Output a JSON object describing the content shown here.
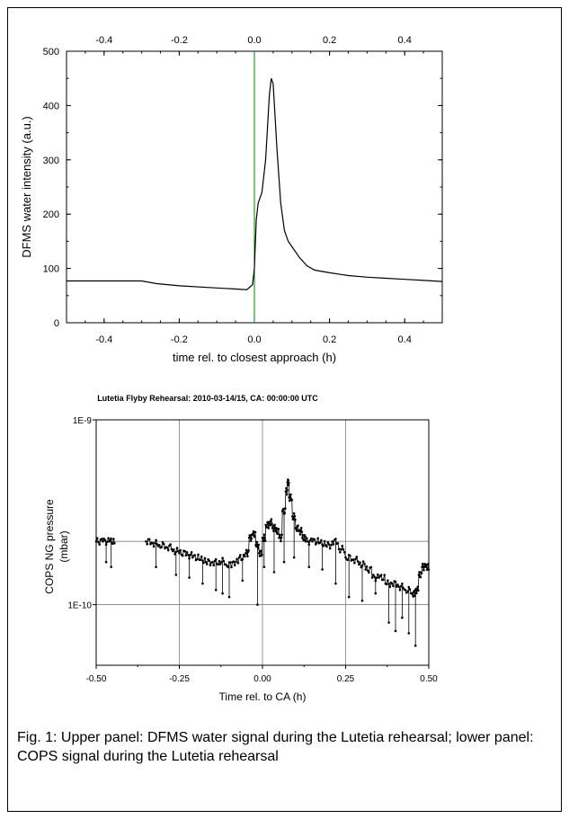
{
  "chart_data": [
    {
      "type": "line",
      "title": "",
      "xlabel": "time rel. to closest approach (h)",
      "ylabel": "DFMS water intensity (a.u.)",
      "xlim": [
        -0.5,
        0.5
      ],
      "ylim": [
        0,
        500
      ],
      "xticks": [
        -0.4,
        -0.2,
        0.0,
        0.2,
        0.4
      ],
      "xtick_labels": [
        "-0.4",
        "-0.2",
        "0.0",
        "0.2",
        "0.4"
      ],
      "top_xtick_labels": [
        "-0.4",
        "-0.2",
        "0.0",
        "0.2",
        "0.4"
      ],
      "yticks": [
        0,
        100,
        200,
        300,
        400,
        500
      ],
      "ytick_labels": [
        "0",
        "100",
        "200",
        "300",
        "400",
        "500"
      ],
      "grid": false,
      "marker_line_x": 0.0,
      "marker_line_color": "#008000",
      "series": [
        {
          "color": "#000000",
          "x": [
            -0.5,
            -0.4,
            -0.3,
            -0.26,
            -0.2,
            -0.1,
            -0.02,
            -0.005,
            0.0,
            0.005,
            0.01,
            0.02,
            0.03,
            0.04,
            0.045,
            0.05,
            0.06,
            0.07,
            0.08,
            0.09,
            0.1,
            0.12,
            0.14,
            0.16,
            0.2,
            0.25,
            0.3,
            0.35,
            0.4,
            0.45,
            0.5
          ],
          "y": [
            77,
            77,
            77,
            72,
            68,
            64,
            61,
            70,
            100,
            190,
            220,
            240,
            300,
            420,
            450,
            440,
            320,
            220,
            170,
            150,
            140,
            120,
            105,
            97,
            92,
            87,
            84,
            82,
            80,
            78,
            76
          ]
        }
      ]
    },
    {
      "type": "scatter",
      "title": "Lutetia Flyby Rehearsal: 2010-03-14/15, CA: 00:00:00 UTC",
      "xlabel": "Time rel. to CA (h)",
      "ylabel": "COPS NG pressure\n(mbar)",
      "xlim": [
        -0.5,
        0.5
      ],
      "yscale": "log",
      "ylim": [
        4.7e-11,
        1e-09
      ],
      "xticks": [
        -0.5,
        -0.25,
        0.0,
        0.25,
        0.5
      ],
      "xtick_labels": [
        "-0.50",
        "-0.25",
        "0.00",
        "0.25",
        "0.50"
      ],
      "yticks": [
        1e-10,
        1e-09
      ],
      "ytick_labels": [
        "1E-10",
        "1E-9"
      ],
      "grid": true,
      "connect_points": true,
      "series": [
        {
          "color": "#000000",
          "x": [
            -0.5,
            -0.48,
            -0.46,
            -0.445,
            -0.35,
            -0.33,
            -0.31,
            -0.29,
            -0.27,
            -0.25,
            -0.23,
            -0.21,
            -0.19,
            -0.17,
            -0.15,
            -0.13,
            -0.11,
            -0.09,
            -0.07,
            -0.05,
            -0.04,
            -0.03,
            -0.02,
            -0.01,
            0.0,
            0.01,
            0.02,
            0.03,
            0.04,
            0.05,
            0.06,
            0.07,
            0.075,
            0.08,
            0.09,
            0.1,
            0.11,
            0.12,
            0.13,
            0.15,
            0.17,
            0.19,
            0.21,
            0.23,
            0.25,
            0.27,
            0.29,
            0.31,
            0.33,
            0.35,
            0.37,
            0.39,
            0.41,
            0.43,
            0.45,
            0.46,
            0.47,
            0.48,
            0.49,
            0.5
          ],
          "y": [
            2.2e-10,
            2.2e-10,
            2.2e-10,
            2.15e-10,
            2.2e-10,
            2.15e-10,
            2.1e-10,
            2.05e-10,
            1.95e-10,
            1.9e-10,
            1.85e-10,
            1.8e-10,
            1.75e-10,
            1.7e-10,
            1.7e-10,
            1.72e-10,
            1.65e-10,
            1.7e-10,
            1.8e-10,
            1.9e-10,
            2.3e-10,
            2.4e-10,
            2.1e-10,
            1.9e-10,
            2.3e-10,
            2.7e-10,
            2.8e-10,
            2.6e-10,
            2.5e-10,
            2.3e-10,
            3.2e-10,
            4.1e-10,
            4.6e-10,
            3.8e-10,
            3e-10,
            2.6e-10,
            2.5e-10,
            2.3e-10,
            2.2e-10,
            2.2e-10,
            2.15e-10,
            2.1e-10,
            2.2e-10,
            2e-10,
            1.8e-10,
            1.75e-10,
            1.65e-10,
            1.55e-10,
            1.4e-10,
            1.4e-10,
            1.3e-10,
            1.3e-10,
            1.25e-10,
            1.2e-10,
            1.15e-10,
            1.2e-10,
            1.45e-10,
            1.6e-10,
            1.6e-10,
            1.55e-10
          ],
          "dips_x": [
            -0.47,
            -0.455,
            -0.32,
            -0.26,
            -0.22,
            -0.18,
            -0.14,
            -0.12,
            -0.1,
            -0.06,
            -0.015,
            0.005,
            0.035,
            0.065,
            0.095,
            0.14,
            0.18,
            0.22,
            0.26,
            0.3,
            0.34,
            0.38,
            0.4,
            0.42,
            0.44,
            0.46
          ],
          "dips_y": [
            1.7e-10,
            1.6e-10,
            1.6e-10,
            1.45e-10,
            1.4e-10,
            1.3e-10,
            1.2e-10,
            1.15e-10,
            1.1e-10,
            1.35e-10,
            1e-10,
            1.6e-10,
            1.5e-10,
            1.7e-10,
            1.8e-10,
            1.6e-10,
            1.55e-10,
            1.3e-10,
            1.1e-10,
            1.05e-10,
            1.15e-10,
            8e-11,
            7.2e-11,
            8.5e-11,
            7e-11,
            6e-11
          ]
        }
      ]
    }
  ],
  "caption": "Fig. 1: Upper panel: DFMS water signal during the Lutetia rehearsal; lower panel: COPS signal during the Lutetia rehearsal"
}
